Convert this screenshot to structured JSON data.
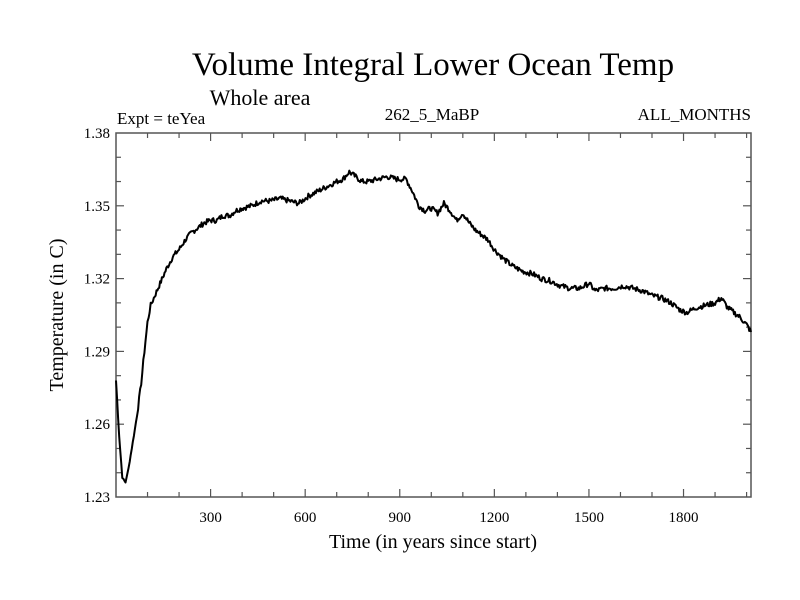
{
  "chart_data": {
    "type": "line",
    "title": "Volume Integral Lower Ocean Temp",
    "subtitle": "Whole area",
    "left_label": "Expt = teYea",
    "center_label": "262_5_MaBP",
    "right_label": "ALL_MONTHS",
    "xlabel": "Time (in years since start)",
    "ylabel": "Temperature (in C)",
    "xlim": [
      0,
      2014
    ],
    "ylim": [
      1.23,
      1.38
    ],
    "x_ticks": [
      300,
      600,
      900,
      1200,
      1500,
      1800
    ],
    "x_tick_labels": [
      "300",
      "600",
      "900",
      "1200",
      "1500",
      "1800"
    ],
    "y_ticks": [
      1.23,
      1.26,
      1.29,
      1.32,
      1.35,
      1.38
    ],
    "y_tick_labels": [
      "1.23",
      "1.26",
      "1.29",
      "1.32",
      "1.35",
      "1.38"
    ],
    "grid": false,
    "legend": "none",
    "line_color": "#000000",
    "series": [
      {
        "name": "teYea",
        "x": [
          0,
          10,
          20,
          30,
          40,
          50,
          60,
          70,
          80,
          90,
          100,
          110,
          120,
          140,
          160,
          180,
          200,
          220,
          240,
          260,
          280,
          300,
          320,
          340,
          360,
          380,
          400,
          430,
          460,
          490,
          520,
          550,
          580,
          610,
          640,
          670,
          700,
          720,
          740,
          760,
          780,
          800,
          830,
          860,
          890,
          920,
          940,
          960,
          980,
          1000,
          1020,
          1040,
          1060,
          1080,
          1100,
          1120,
          1140,
          1160,
          1180,
          1200,
          1230,
          1260,
          1290,
          1320,
          1350,
          1380,
          1410,
          1440,
          1470,
          1500,
          1520,
          1550,
          1580,
          1610,
          1640,
          1670,
          1700,
          1730,
          1760,
          1790,
          1810,
          1840,
          1870,
          1900,
          1920,
          1940,
          1960,
          1980,
          2000,
          2014
        ],
        "y": [
          1.278,
          1.255,
          1.238,
          1.236,
          1.242,
          1.25,
          1.258,
          1.267,
          1.277,
          1.29,
          1.302,
          1.309,
          1.312,
          1.318,
          1.324,
          1.329,
          1.332,
          1.336,
          1.339,
          1.341,
          1.343,
          1.344,
          1.344,
          1.346,
          1.346,
          1.348,
          1.349,
          1.35,
          1.352,
          1.352,
          1.353,
          1.352,
          1.351,
          1.354,
          1.356,
          1.358,
          1.36,
          1.361,
          1.364,
          1.362,
          1.36,
          1.36,
          1.361,
          1.362,
          1.361,
          1.361,
          1.356,
          1.35,
          1.348,
          1.349,
          1.347,
          1.351,
          1.348,
          1.344,
          1.347,
          1.343,
          1.34,
          1.338,
          1.336,
          1.332,
          1.328,
          1.325,
          1.323,
          1.322,
          1.32,
          1.319,
          1.317,
          1.316,
          1.316,
          1.318,
          1.315,
          1.316,
          1.316,
          1.317,
          1.316,
          1.315,
          1.313,
          1.312,
          1.31,
          1.307,
          1.306,
          1.308,
          1.309,
          1.31,
          1.312,
          1.308,
          1.306,
          1.304,
          1.301,
          1.298
        ]
      }
    ]
  }
}
